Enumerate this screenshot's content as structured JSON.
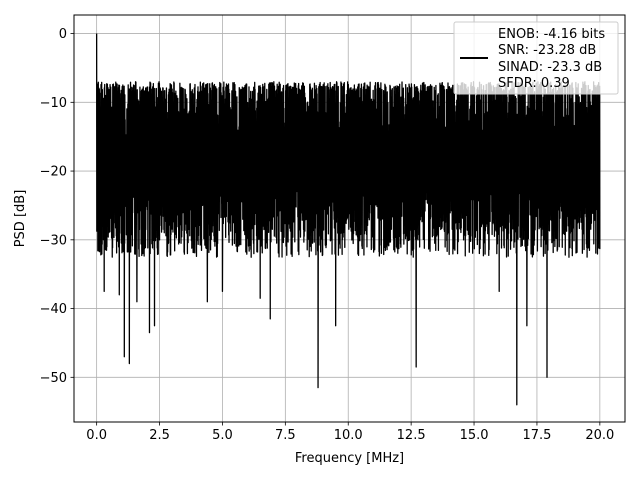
{
  "chart_data": {
    "type": "line",
    "title": "",
    "xlabel": "Frequency [MHz]",
    "ylabel": "PSD [dB]",
    "xlim": [
      -0.9,
      21.0
    ],
    "ylim": [
      -56.5,
      2.7
    ],
    "xticks": [
      0.0,
      2.5,
      5.0,
      7.5,
      10.0,
      12.5,
      15.0,
      17.5,
      20.0
    ],
    "xtick_labels": [
      "0.0",
      "2.5",
      "5.0",
      "7.5",
      "10.0",
      "12.5",
      "15.0",
      "17.5",
      "20.0"
    ],
    "yticks": [
      0,
      -10,
      -20,
      -30,
      -40,
      -50
    ],
    "ytick_labels": [
      "0",
      "−10",
      "−20",
      "−30",
      "−40",
      "−50"
    ],
    "grid": true,
    "legend_position": "upper right",
    "legend_lines": [
      "ENOB: -4.16 bits",
      "SNR: -23.28 dB",
      "SINAD: -23.3 dB",
      "SFDR: 0.39"
    ],
    "series": [
      {
        "color": "#000000",
        "style": "dense noisy trace, approximately -7 to -30 dB across the band with deep downward spikes",
        "peak": {
          "x": 0.0,
          "y": 0.0
        },
        "band_upper": {
          "x": [
            0.0,
            20.0
          ],
          "y": [
            -7,
            -7
          ]
        },
        "band_lower": {
          "x": [
            0.0,
            20.0
          ],
          "y": [
            -30,
            -30
          ]
        },
        "notable_minima": [
          {
            "x": 0.3,
            "y": -37.5
          },
          {
            "x": 0.9,
            "y": -38.0
          },
          {
            "x": 1.1,
            "y": -47.0
          },
          {
            "x": 1.3,
            "y": -48.0
          },
          {
            "x": 1.6,
            "y": -39.0
          },
          {
            "x": 2.1,
            "y": -43.5
          },
          {
            "x": 2.3,
            "y": -42.5
          },
          {
            "x": 4.4,
            "y": -39.0
          },
          {
            "x": 5.0,
            "y": -37.5
          },
          {
            "x": 6.5,
            "y": -38.5
          },
          {
            "x": 6.9,
            "y": -41.5
          },
          {
            "x": 8.8,
            "y": -51.5
          },
          {
            "x": 9.5,
            "y": -42.5
          },
          {
            "x": 12.7,
            "y": -48.5
          },
          {
            "x": 16.0,
            "y": -37.5
          },
          {
            "x": 16.7,
            "y": -54.0
          },
          {
            "x": 17.1,
            "y": -42.5
          },
          {
            "x": 17.9,
            "y": -50.0
          }
        ]
      }
    ]
  }
}
